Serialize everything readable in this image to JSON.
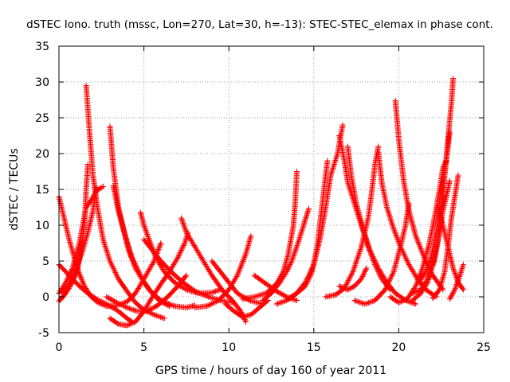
{
  "chart_data": {
    "type": "scatter",
    "title": "dSTEC Iono. truth (mssc, Lon=270, Lat=30, h=-13): STEC-STEC_elemax in phase cont.",
    "xlabel": "GPS time / hours of day 160 of year 2011",
    "ylabel": "dSTEC  / TECUs",
    "xlim": [
      0,
      25
    ],
    "ylim": [
      -5,
      35
    ],
    "xticks": [
      "0",
      "5",
      "10",
      "15",
      "20",
      "25"
    ],
    "yticks": [
      "-5",
      "0",
      "5",
      "10",
      "15",
      "20",
      "25",
      "30",
      "35"
    ],
    "grid": true,
    "marker": "plus",
    "color": "#ff0000",
    "arcs": [
      [
        [
          0.0,
          14.0
        ],
        [
          0.3,
          11.0
        ],
        [
          0.6,
          8.0
        ],
        [
          0.9,
          5.5
        ],
        [
          1.2,
          3.2
        ],
        [
          1.5,
          1.5
        ],
        [
          1.9,
          0.0
        ],
        [
          2.3,
          -0.8
        ],
        [
          2.8,
          -1.3
        ],
        [
          3.4,
          -1.2
        ],
        [
          4.0,
          -0.7
        ],
        [
          4.5,
          0.5
        ],
        [
          5.0,
          2.5
        ],
        [
          5.6,
          5.0
        ],
        [
          6.0,
          7.5
        ]
      ],
      [
        [
          0.0,
          4.5
        ],
        [
          0.4,
          3.5
        ],
        [
          0.8,
          2.5
        ],
        [
          1.2,
          1.5
        ],
        [
          1.7,
          0.5
        ],
        [
          2.2,
          -0.3
        ],
        [
          2.8,
          -1.0
        ],
        [
          3.5,
          -2.0
        ],
        [
          4.0,
          -3.0
        ],
        [
          4.3,
          -3.5
        ]
      ],
      [
        [
          0.0,
          -0.6
        ],
        [
          0.4,
          0.5
        ],
        [
          0.8,
          2.0
        ],
        [
          1.1,
          4.0
        ],
        [
          1.3,
          6.5
        ],
        [
          1.5,
          10.0
        ],
        [
          1.6,
          15.0
        ],
        [
          1.7,
          18.5
        ]
      ],
      [
        [
          0.1,
          -0.4
        ],
        [
          0.5,
          1.0
        ],
        [
          0.9,
          3.0
        ],
        [
          1.2,
          5.5
        ],
        [
          1.4,
          7.8
        ]
      ],
      [
        [
          0.0,
          0.5
        ],
        [
          0.4,
          2.0
        ],
        [
          0.8,
          4.0
        ],
        [
          1.2,
          7.5
        ],
        [
          1.6,
          12.5
        ],
        [
          1.9,
          13.5
        ],
        [
          2.2,
          14.8
        ],
        [
          2.6,
          15.4
        ]
      ],
      [
        [
          1.6,
          29.5
        ],
        [
          1.8,
          23.0
        ],
        [
          2.0,
          17.0
        ],
        [
          2.3,
          12.0
        ],
        [
          2.6,
          8.0
        ],
        [
          3.0,
          5.0
        ],
        [
          3.5,
          2.5
        ],
        [
          4.0,
          0.8
        ],
        [
          4.5,
          -0.8
        ],
        [
          5.0,
          -1.8
        ],
        [
          5.6,
          -2.5
        ],
        [
          6.2,
          -3.0
        ]
      ],
      [
        [
          3.0,
          23.8
        ],
        [
          3.2,
          18.0
        ],
        [
          3.5,
          12.5
        ],
        [
          3.8,
          9.5
        ],
        [
          4.1,
          6.5
        ],
        [
          4.5,
          4.0
        ],
        [
          5.0,
          2.0
        ],
        [
          5.5,
          0.5
        ],
        [
          6.0,
          -0.5
        ],
        [
          6.8,
          -1.3
        ],
        [
          7.5,
          -1.5
        ],
        [
          8.0,
          -1.2
        ]
      ],
      [
        [
          2.2,
          15.3
        ],
        [
          2.0,
          12.0
        ],
        [
          1.7,
          9.0
        ],
        [
          1.4,
          6.5
        ],
        [
          1.1,
          4.5
        ],
        [
          0.8,
          2.8
        ],
        [
          0.5,
          1.5
        ],
        [
          0.2,
          0.6
        ]
      ],
      [
        [
          3.2,
          15.5
        ],
        [
          3.5,
          12.0
        ],
        [
          3.9,
          8.5
        ],
        [
          4.3,
          5.5
        ],
        [
          4.8,
          3.0
        ],
        [
          5.3,
          1.0
        ],
        [
          5.9,
          -0.5
        ],
        [
          6.5,
          -1.3
        ]
      ],
      [
        [
          3.0,
          -3.0
        ],
        [
          3.5,
          -3.8
        ],
        [
          4.0,
          -4.0
        ],
        [
          4.5,
          -3.5
        ],
        [
          5.0,
          -2.0
        ],
        [
          5.5,
          0.0
        ],
        [
          6.0,
          1.8
        ],
        [
          6.5,
          3.5
        ],
        [
          7.0,
          5.5
        ],
        [
          7.4,
          7.5
        ],
        [
          7.6,
          9.0
        ]
      ],
      [
        [
          2.8,
          0.0
        ],
        [
          3.4,
          -0.8
        ],
        [
          4.0,
          -1.5
        ],
        [
          4.6,
          -2.0
        ],
        [
          5.2,
          -2.0
        ],
        [
          5.8,
          -1.2
        ],
        [
          6.4,
          0.0
        ],
        [
          7.0,
          1.5
        ],
        [
          7.5,
          3.0
        ]
      ],
      [
        [
          4.8,
          11.8
        ],
        [
          5.0,
          10.0
        ],
        [
          5.3,
          8.0
        ],
        [
          5.7,
          5.5
        ],
        [
          6.2,
          3.5
        ],
        [
          6.8,
          2.0
        ],
        [
          7.5,
          1.0
        ],
        [
          8.2,
          0.5
        ],
        [
          9.0,
          0.6
        ],
        [
          9.5,
          1.0
        ]
      ],
      [
        [
          5.0,
          8.0
        ],
        [
          5.5,
          6.5
        ],
        [
          6.0,
          5.0
        ],
        [
          6.6,
          3.5
        ],
        [
          7.3,
          2.0
        ],
        [
          8.0,
          0.8
        ],
        [
          8.8,
          0.0
        ],
        [
          9.5,
          -0.5
        ],
        [
          10.3,
          -0.8
        ]
      ],
      [
        [
          7.2,
          11.0
        ],
        [
          7.5,
          9.0
        ],
        [
          8.0,
          7.0
        ],
        [
          8.5,
          5.0
        ],
        [
          9.0,
          3.0
        ],
        [
          9.6,
          1.0
        ],
        [
          10.2,
          -0.5
        ],
        [
          10.7,
          -2.0
        ],
        [
          11.0,
          -3.5
        ]
      ],
      [
        [
          9.0,
          5.0
        ],
        [
          9.5,
          3.5
        ],
        [
          10.0,
          2.0
        ],
        [
          10.5,
          0.5
        ],
        [
          11.2,
          -0.5
        ],
        [
          12.0,
          -1.0
        ]
      ],
      [
        [
          8.0,
          -1.5
        ],
        [
          8.7,
          -1.3
        ],
        [
          9.4,
          -0.5
        ],
        [
          10.0,
          1.0
        ],
        [
          10.5,
          3.0
        ],
        [
          11.0,
          6.0
        ],
        [
          11.3,
          8.5
        ]
      ],
      [
        [
          9.8,
          -1.0
        ],
        [
          10.3,
          -2.0
        ],
        [
          10.8,
          -2.8
        ],
        [
          11.3,
          -2.5
        ],
        [
          11.8,
          -1.5
        ],
        [
          12.3,
          -0.5
        ]
      ],
      [
        [
          11.5,
          3.0
        ],
        [
          12.2,
          1.8
        ],
        [
          12.8,
          0.8
        ],
        [
          13.4,
          0.0
        ],
        [
          14.0,
          -0.5
        ]
      ],
      [
        [
          10.8,
          -0.3
        ],
        [
          11.5,
          0.0
        ],
        [
          12.2,
          0.5
        ],
        [
          12.8,
          1.8
        ],
        [
          13.2,
          3.5
        ],
        [
          13.5,
          6.0
        ],
        [
          13.8,
          10.0
        ],
        [
          13.9,
          13.0
        ],
        [
          14.0,
          17.5
        ]
      ],
      [
        [
          12.0,
          -0.5
        ],
        [
          12.5,
          0.5
        ],
        [
          13.0,
          2.0
        ],
        [
          13.4,
          3.5
        ],
        [
          13.7,
          5.0
        ],
        [
          14.0,
          7.0
        ],
        [
          14.4,
          10.0
        ],
        [
          14.7,
          12.3
        ]
      ],
      [
        [
          12.8,
          -1.0
        ],
        [
          13.4,
          -0.5
        ],
        [
          14.0,
          0.5
        ],
        [
          14.5,
          2.0
        ],
        [
          15.0,
          4.5
        ],
        [
          15.4,
          8.5
        ],
        [
          15.7,
          12.5
        ],
        [
          16.0,
          17.0
        ],
        [
          16.4,
          20.0
        ],
        [
          16.7,
          24.0
        ]
      ],
      [
        [
          13.5,
          -0.3
        ],
        [
          14.0,
          0.5
        ],
        [
          14.5,
          1.5
        ],
        [
          14.9,
          3.5
        ],
        [
          15.2,
          7.0
        ],
        [
          15.4,
          11.0
        ],
        [
          15.6,
          15.0
        ],
        [
          15.8,
          19.0
        ]
      ],
      [
        [
          16.5,
          22.5
        ],
        [
          16.8,
          19.0
        ],
        [
          17.0,
          16.0
        ],
        [
          17.4,
          13.0
        ],
        [
          17.8,
          10.0
        ],
        [
          18.2,
          7.0
        ],
        [
          18.6,
          4.5
        ],
        [
          19.0,
          2.5
        ],
        [
          19.5,
          1.0
        ]
      ],
      [
        [
          16.5,
          1.5
        ],
        [
          17.0,
          1.0
        ],
        [
          17.4,
          1.5
        ],
        [
          17.8,
          2.5
        ],
        [
          18.1,
          4.0
        ]
      ],
      [
        [
          17.0,
          21.0
        ],
        [
          17.2,
          17.0
        ],
        [
          17.5,
          13.0
        ],
        [
          17.9,
          9.5
        ],
        [
          18.3,
          6.5
        ],
        [
          18.8,
          4.0
        ],
        [
          19.3,
          2.0
        ],
        [
          19.8,
          0.5
        ],
        [
          20.4,
          -0.5
        ],
        [
          21.0,
          -1.0
        ]
      ],
      [
        [
          15.7,
          0.0
        ],
        [
          16.3,
          0.3
        ],
        [
          16.8,
          1.2
        ],
        [
          17.3,
          3.5
        ],
        [
          17.8,
          7.0
        ],
        [
          18.2,
          11.0
        ],
        [
          18.4,
          14.5
        ],
        [
          18.6,
          18.5
        ],
        [
          18.8,
          21.0
        ]
      ],
      [
        [
          18.8,
          20.2
        ],
        [
          19.0,
          16.0
        ],
        [
          19.3,
          12.5
        ],
        [
          19.7,
          9.5
        ],
        [
          20.1,
          7.0
        ],
        [
          20.6,
          4.5
        ],
        [
          21.1,
          2.5
        ],
        [
          21.6,
          1.0
        ],
        [
          22.2,
          0.0
        ]
      ],
      [
        [
          17.4,
          -0.5
        ],
        [
          18.0,
          -1.0
        ],
        [
          18.6,
          -0.5
        ],
        [
          19.2,
          1.0
        ],
        [
          19.7,
          3.5
        ],
        [
          20.1,
          7.0
        ],
        [
          20.4,
          10.0
        ],
        [
          20.6,
          13.0
        ]
      ],
      [
        [
          19.8,
          27.4
        ],
        [
          20.0,
          22.0
        ],
        [
          20.3,
          16.0
        ],
        [
          20.6,
          12.0
        ],
        [
          21.0,
          8.5
        ],
        [
          21.5,
          5.5
        ],
        [
          22.0,
          3.0
        ],
        [
          22.6,
          1.0
        ]
      ],
      [
        [
          19.5,
          0.0
        ],
        [
          20.0,
          -0.8
        ],
        [
          20.5,
          -0.3
        ],
        [
          21.0,
          1.5
        ],
        [
          21.4,
          4.0
        ],
        [
          21.8,
          7.5
        ],
        [
          22.1,
          11.0
        ],
        [
          22.4,
          15.0
        ],
        [
          22.6,
          18.0
        ],
        [
          22.8,
          19.0
        ]
      ],
      [
        [
          20.8,
          0.5
        ],
        [
          21.3,
          1.0
        ],
        [
          21.7,
          2.5
        ],
        [
          22.1,
          5.0
        ],
        [
          22.4,
          9.0
        ],
        [
          22.6,
          12.0
        ],
        [
          22.8,
          14.0
        ],
        [
          23.0,
          16.2
        ]
      ],
      [
        [
          21.2,
          2.0
        ],
        [
          21.6,
          3.5
        ],
        [
          21.9,
          5.5
        ],
        [
          22.2,
          9.0
        ],
        [
          22.5,
          13.0
        ],
        [
          22.7,
          17.0
        ],
        [
          22.9,
          21.0
        ],
        [
          23.0,
          23.0
        ]
      ],
      [
        [
          20.8,
          -0.5
        ],
        [
          21.3,
          0.5
        ],
        [
          21.7,
          2.0
        ],
        [
          22.0,
          4.5
        ],
        [
          22.3,
          8.0
        ],
        [
          22.5,
          12.0
        ],
        [
          22.7,
          17.0
        ],
        [
          22.9,
          22.0
        ],
        [
          23.1,
          27.0
        ],
        [
          23.2,
          30.5
        ]
      ],
      [
        [
          22.0,
          -0.2
        ],
        [
          22.4,
          1.0
        ],
        [
          22.7,
          3.5
        ],
        [
          22.9,
          7.0
        ],
        [
          23.1,
          11.0
        ],
        [
          23.3,
          14.0
        ],
        [
          23.5,
          17.0
        ]
      ],
      [
        [
          22.3,
          12.5
        ],
        [
          22.6,
          10.0
        ],
        [
          22.9,
          7.0
        ],
        [
          23.2,
          4.0
        ],
        [
          23.5,
          2.0
        ],
        [
          23.8,
          1.0
        ]
      ],
      [
        [
          23.0,
          -0.3
        ],
        [
          23.3,
          1.0
        ],
        [
          23.6,
          3.0
        ],
        [
          23.8,
          4.5
        ]
      ]
    ]
  }
}
